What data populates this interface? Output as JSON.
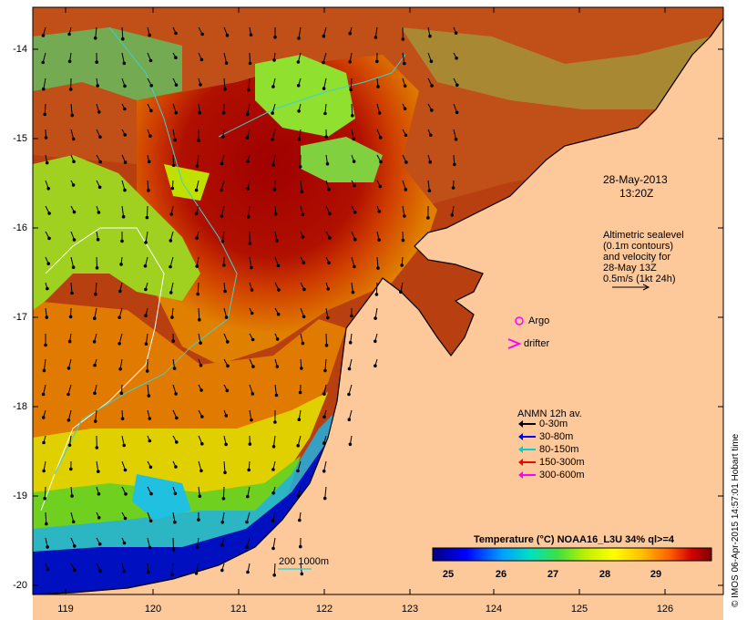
{
  "map": {
    "timestamp_date": "28-May-2013",
    "timestamp_time": "13:20Z",
    "sealevel_note": [
      "Altimetric sealevel",
      "(0.1m contours)",
      "and velocity for",
      "28-May 13Z",
      "0.5m/s (1kt 24h)"
    ],
    "argo_label": "Argo",
    "drifter_label": "drifter",
    "anmn_title": "ANMN 12h av.",
    "anmn_legend": [
      {
        "label": "0-30m",
        "color": "#000000"
      },
      {
        "label": "30-80m",
        "color": "#0000ff"
      },
      {
        "label": "80-150m",
        "color": "#00d0d0"
      },
      {
        "label": "150-300m",
        "color": "#ff0000"
      },
      {
        "label": "300-600m",
        "color": "#ff00ff"
      }
    ],
    "isobath_label": "200  1000m",
    "colorbar_title": "Temperature (°C) NOAA16_L3U 34% ql>=4",
    "colorbar_ticks": [
      "25",
      "26",
      "27",
      "28",
      "29"
    ],
    "y_ticks": [
      "-14",
      "-15",
      "-16",
      "-17",
      "-18",
      "-19",
      "-20"
    ],
    "x_ticks": [
      "119",
      "120",
      "121",
      "122",
      "123",
      "124",
      "125",
      "126"
    ],
    "credit": "© IMOS 06-Apr-2015 14:57:01 Hobart time",
    "colors": {
      "land": "#fdc89a",
      "warm": "#a00000",
      "cool": "#0000a0"
    }
  }
}
